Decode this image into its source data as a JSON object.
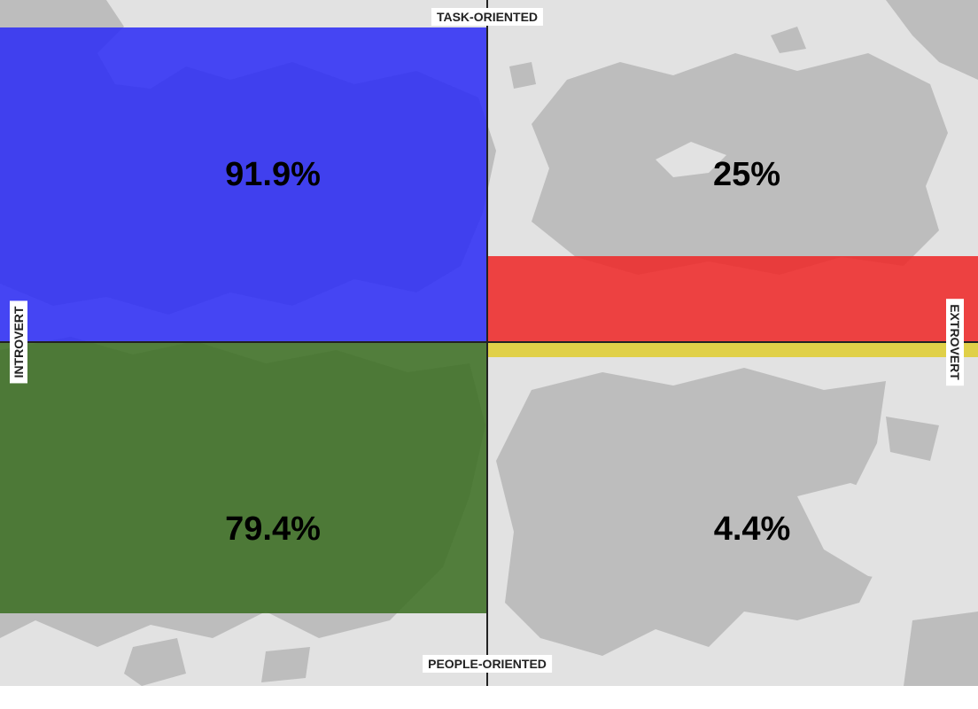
{
  "chart_data": {
    "type": "quadrant",
    "axes": {
      "top": "TASK-ORIENTED",
      "bottom": "PEOPLE-ORIENTED",
      "left": "INTROVERT",
      "right": "EXTROVERT"
    },
    "quadrants": [
      {
        "id": "top-left",
        "label": "91.9%",
        "value": 91.9,
        "color": "#2f2ff5"
      },
      {
        "id": "top-right",
        "label": "25%",
        "value": 25,
        "color": "#ee2a2a"
      },
      {
        "id": "bottom-left",
        "label": "79.4%",
        "value": 79.4,
        "color": "#3d7024"
      },
      {
        "id": "bottom-right",
        "label": "4.4%",
        "value": 4.4,
        "color": "#e0cc22"
      }
    ]
  }
}
